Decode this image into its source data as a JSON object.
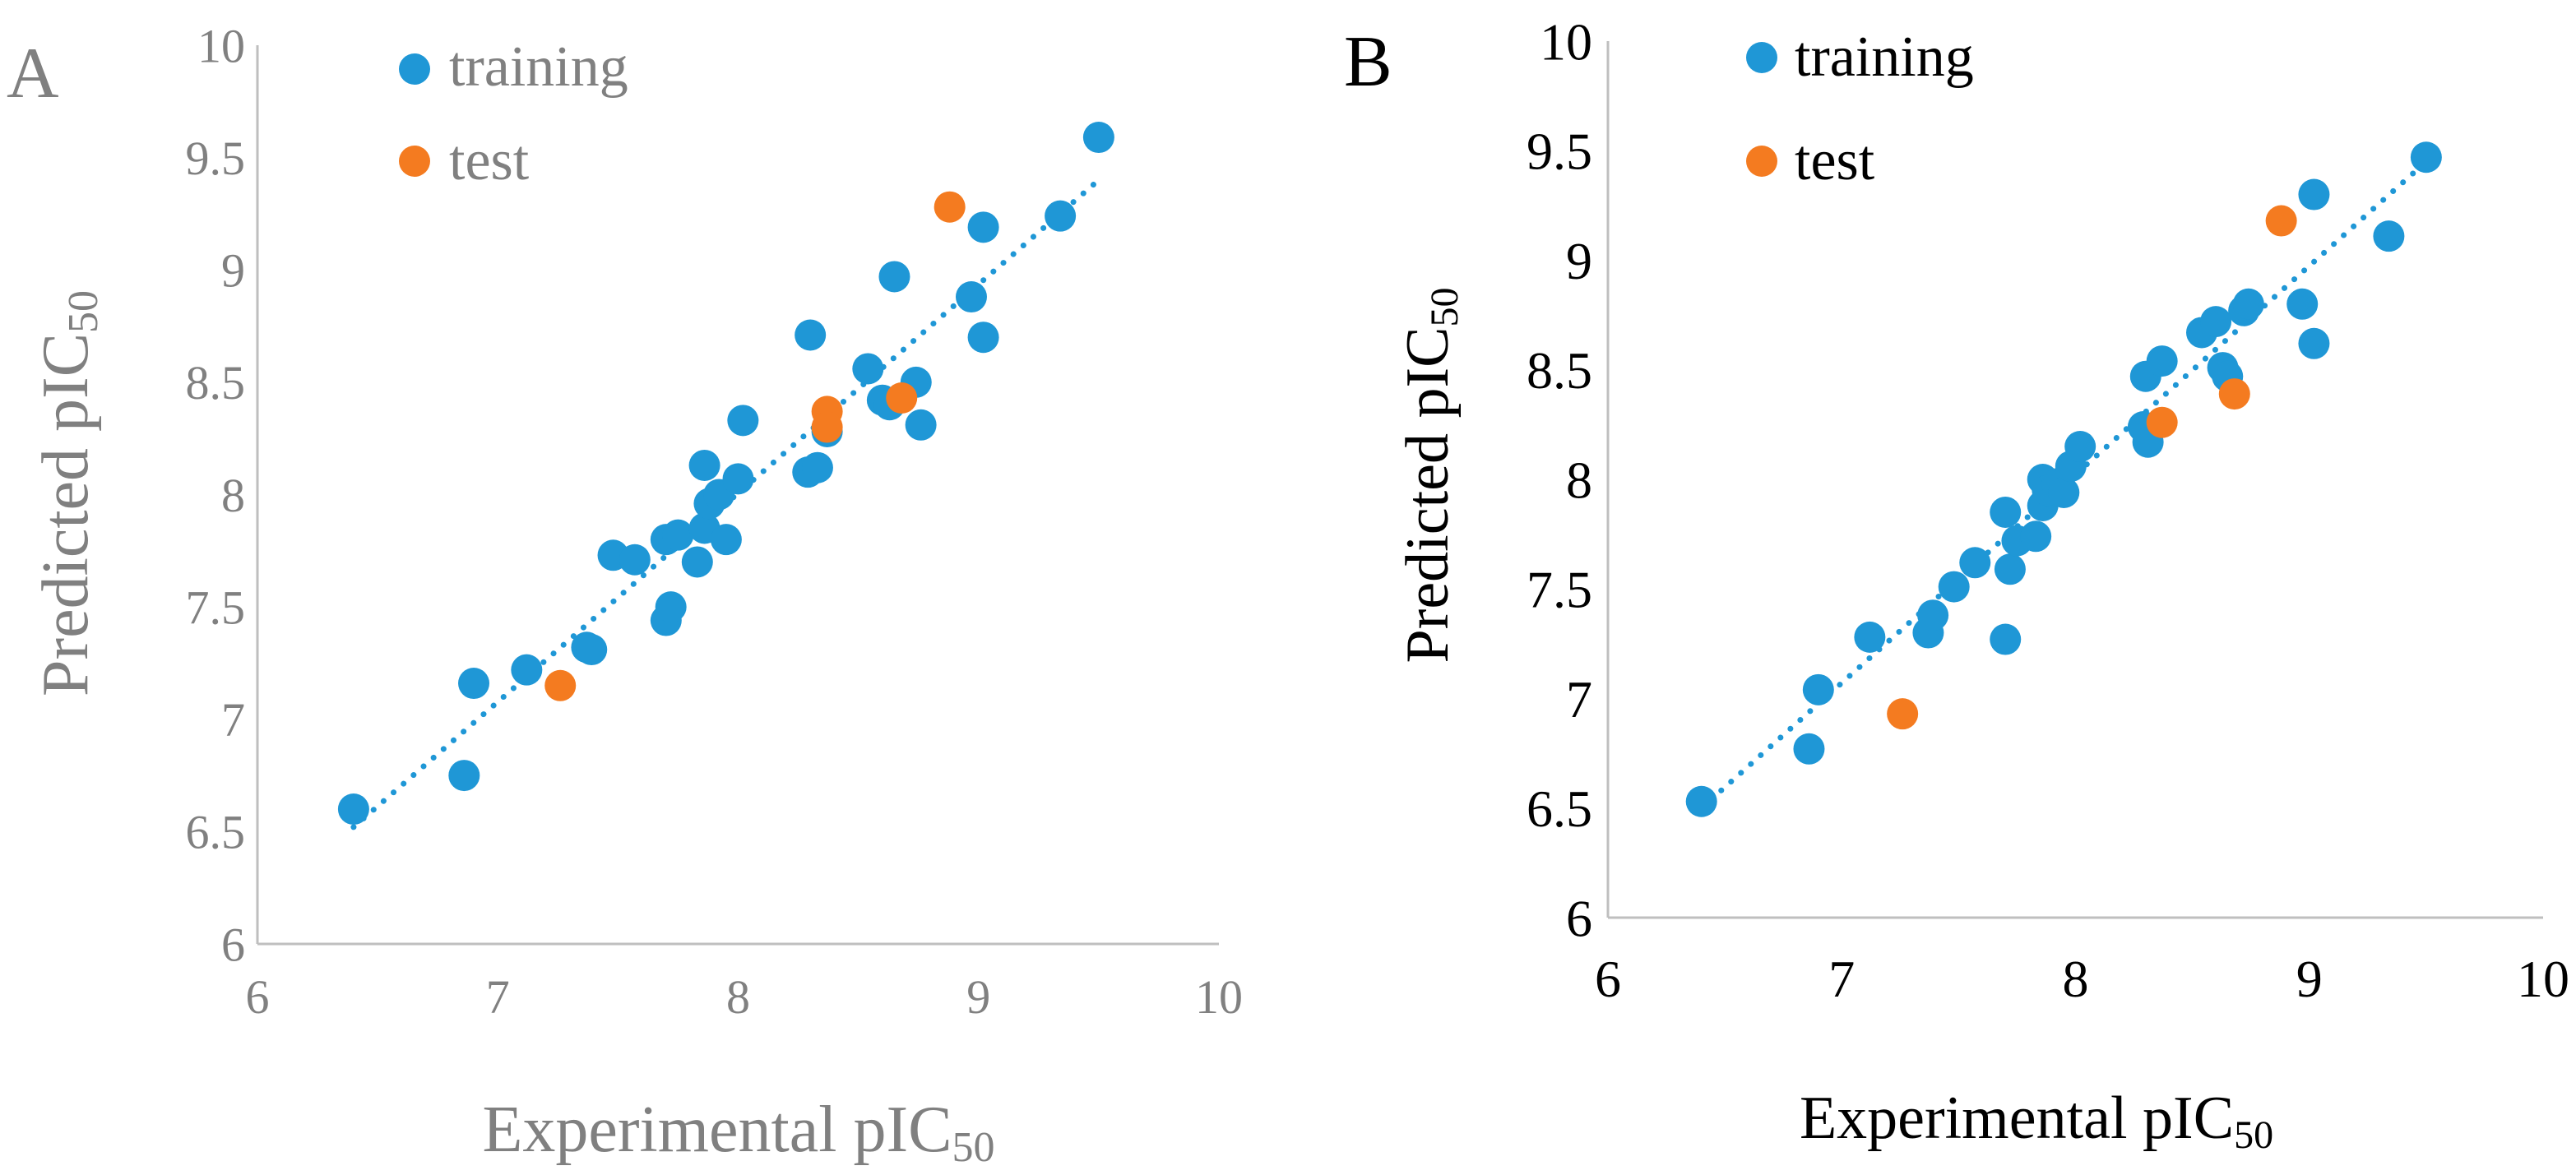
{
  "colors": {
    "training": "#1f97d6",
    "test": "#f47b20",
    "axis_a": "#bfbfbf",
    "axis_b": "#bfbfbf",
    "text_a": "#808080",
    "text_b": "#000000"
  },
  "chart_data": [
    {
      "type": "scatter",
      "panel_label": "A",
      "xlabel": "Experimental pIC",
      "xlabel_sub": "50",
      "ylabel": "Predicted pIC",
      "ylabel_sub": "50",
      "xlim": [
        6,
        10
      ],
      "ylim": [
        6,
        10
      ],
      "xticks": [
        "6",
        "7",
        "8",
        "9",
        "10"
      ],
      "yticks": [
        "6",
        "6.5",
        "7",
        "7.5",
        "8",
        "8.5",
        "9",
        "9.5",
        "10"
      ],
      "legend_position": "top-left",
      "trendline": {
        "style": "dotted",
        "series": "training",
        "x": [
          6.4,
          9.5
        ],
        "y": [
          6.52,
          9.4
        ]
      },
      "series": [
        {
          "name": "training",
          "points": [
            [
              6.4,
              6.6
            ],
            [
              6.86,
              6.75
            ],
            [
              6.9,
              7.16
            ],
            [
              7.12,
              7.22
            ],
            [
              7.37,
              7.32
            ],
            [
              7.39,
              7.31
            ],
            [
              7.48,
              7.73
            ],
            [
              7.57,
              7.71
            ],
            [
              7.7,
              7.44
            ],
            [
              7.72,
              7.5
            ],
            [
              7.7,
              7.8
            ],
            [
              7.75,
              7.82
            ],
            [
              7.83,
              7.7
            ],
            [
              7.86,
              8.13
            ],
            [
              7.86,
              7.85
            ],
            [
              7.88,
              7.96
            ],
            [
              7.92,
              8.0
            ],
            [
              7.95,
              7.8
            ],
            [
              8.0,
              8.07
            ],
            [
              8.02,
              8.33
            ],
            [
              8.29,
              8.1
            ],
            [
              8.3,
              8.71
            ],
            [
              8.33,
              8.12
            ],
            [
              8.37,
              8.28
            ],
            [
              8.54,
              8.56
            ],
            [
              8.6,
              8.42
            ],
            [
              8.63,
              8.4
            ],
            [
              8.65,
              8.97
            ],
            [
              8.74,
              8.5
            ],
            [
              8.76,
              8.31
            ],
            [
              8.97,
              8.88
            ],
            [
              9.02,
              9.19
            ],
            [
              9.02,
              8.7
            ],
            [
              9.34,
              9.24
            ],
            [
              9.5,
              9.59
            ]
          ]
        },
        {
          "name": "test",
          "points": [
            [
              7.26,
              7.15
            ],
            [
              8.37,
              8.37
            ],
            [
              8.37,
              8.3
            ],
            [
              8.68,
              8.43
            ],
            [
              8.88,
              9.28
            ]
          ]
        }
      ]
    },
    {
      "type": "scatter",
      "panel_label": "B",
      "xlabel": "Experimental pIC",
      "xlabel_sub": "50",
      "ylabel": "Predicted pIC",
      "ylabel_sub": "50",
      "xlim": [
        6,
        10
      ],
      "ylim": [
        6,
        10
      ],
      "xticks": [
        "6",
        "7",
        "8",
        "9",
        "10"
      ],
      "yticks": [
        "6",
        "6.5",
        "7",
        "7.5",
        "8",
        "8.5",
        "9",
        "9.5",
        "10"
      ],
      "legend_position": "top-left",
      "trendline": {
        "style": "dotted",
        "series": "training",
        "x": [
          6.4,
          9.5
        ],
        "y": [
          6.5,
          9.45
        ]
      },
      "series": [
        {
          "name": "training",
          "points": [
            [
              6.4,
              6.53
            ],
            [
              6.86,
              6.77
            ],
            [
              6.9,
              7.04
            ],
            [
              7.12,
              7.28
            ],
            [
              7.37,
              7.3
            ],
            [
              7.39,
              7.38
            ],
            [
              7.48,
              7.51
            ],
            [
              7.57,
              7.62
            ],
            [
              7.7,
              7.27
            ],
            [
              7.72,
              7.59
            ],
            [
              7.7,
              7.85
            ],
            [
              7.75,
              7.72
            ],
            [
              7.83,
              7.74
            ],
            [
              7.86,
              8.0
            ],
            [
              7.86,
              7.88
            ],
            [
              7.88,
              7.95
            ],
            [
              7.92,
              7.98
            ],
            [
              7.95,
              7.94
            ],
            [
              7.98,
              8.06
            ],
            [
              8.02,
              8.15
            ],
            [
              8.29,
              8.24
            ],
            [
              8.3,
              8.47
            ],
            [
              8.31,
              8.17
            ],
            [
              8.37,
              8.54
            ],
            [
              8.54,
              8.67
            ],
            [
              8.6,
              8.72
            ],
            [
              8.63,
              8.51
            ],
            [
              8.65,
              8.47
            ],
            [
              8.72,
              8.77
            ],
            [
              8.74,
              8.8
            ],
            [
              8.97,
              8.8
            ],
            [
              9.02,
              9.3
            ],
            [
              9.02,
              8.62
            ],
            [
              9.34,
              9.11
            ],
            [
              9.5,
              9.47
            ]
          ]
        },
        {
          "name": "test",
          "points": [
            [
              7.26,
              6.93
            ],
            [
              8.37,
              8.26
            ],
            [
              8.68,
              8.39
            ],
            [
              8.88,
              9.18
            ]
          ]
        }
      ]
    }
  ]
}
